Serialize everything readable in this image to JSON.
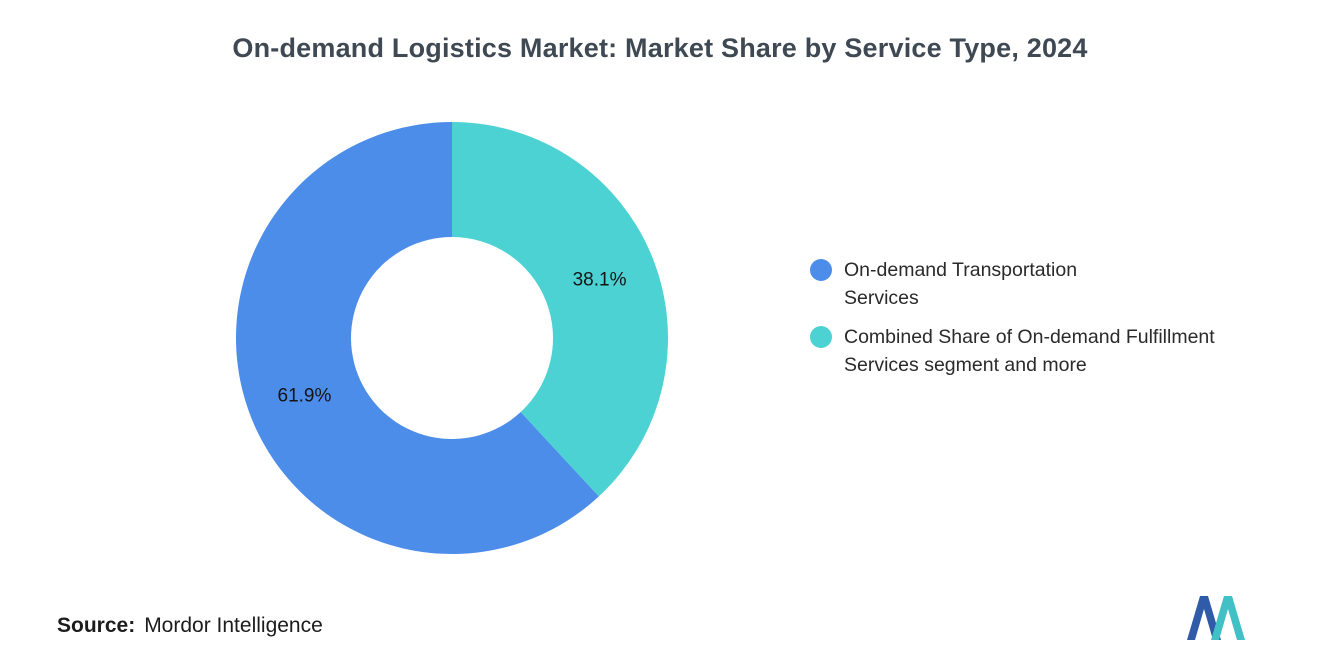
{
  "chart_data": {
    "type": "donut",
    "title": "On-demand Logistics Market: Market Share by Service Type, 2024",
    "slices": [
      {
        "label": "On-demand Transportation Services",
        "value": 61.9,
        "data_label": "61.9%",
        "color": "#4D8DEA"
      },
      {
        "label": "Combined Share of On-demand Fulfillment Services segment and more",
        "value": 38.1,
        "data_label": "38.1%",
        "color": "#4DD2D4"
      }
    ],
    "start_angle": "top",
    "direction": "counterclockwise",
    "inner_radius_ratio": 0.468,
    "legend_position": "right",
    "data_label_color": "#141414"
  },
  "source": {
    "label": "Source:",
    "value": "Mordor Intelligence"
  },
  "logo": {
    "blue": "#2F5BA8",
    "teal": "#41C0C6"
  }
}
